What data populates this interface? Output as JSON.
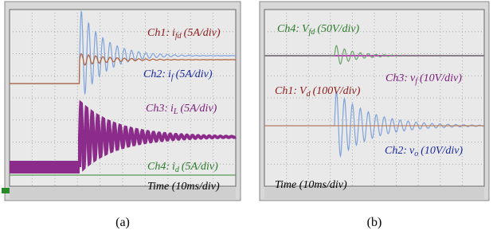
{
  "panels": [
    {
      "caption": "(a)",
      "annotations": [
        {
          "channel": "Ch1:",
          "symbol": "i",
          "sub": "fd",
          "scale": "(5A/div)"
        },
        {
          "channel": "Ch2:",
          "symbol": "i",
          "sub": "f",
          "scale": "(5A/div)"
        },
        {
          "channel": "Ch3:",
          "symbol": "i",
          "sub": "L",
          "scale": "(5A/div)"
        },
        {
          "channel": "Ch4:",
          "symbol": "i",
          "sub": "d",
          "scale": "(5A/div)"
        }
      ],
      "time": "Time (10ms/div)"
    },
    {
      "caption": "(b)",
      "annotations": [
        {
          "channel": "Ch4:",
          "symbol": "V",
          "sub": "fd",
          "scale": "(50V/div)"
        },
        {
          "channel": "Ch3:",
          "symbol": "v",
          "sub": "f",
          "scale": "(10V/div)"
        },
        {
          "channel": "Ch1:",
          "symbol": "V",
          "sub": "d",
          "scale": "(100V/div)"
        },
        {
          "channel": "Ch2:",
          "symbol": "v",
          "sub": "o",
          "scale": "(10V/div)"
        }
      ],
      "time": "Time (10ms/div)"
    }
  ]
}
